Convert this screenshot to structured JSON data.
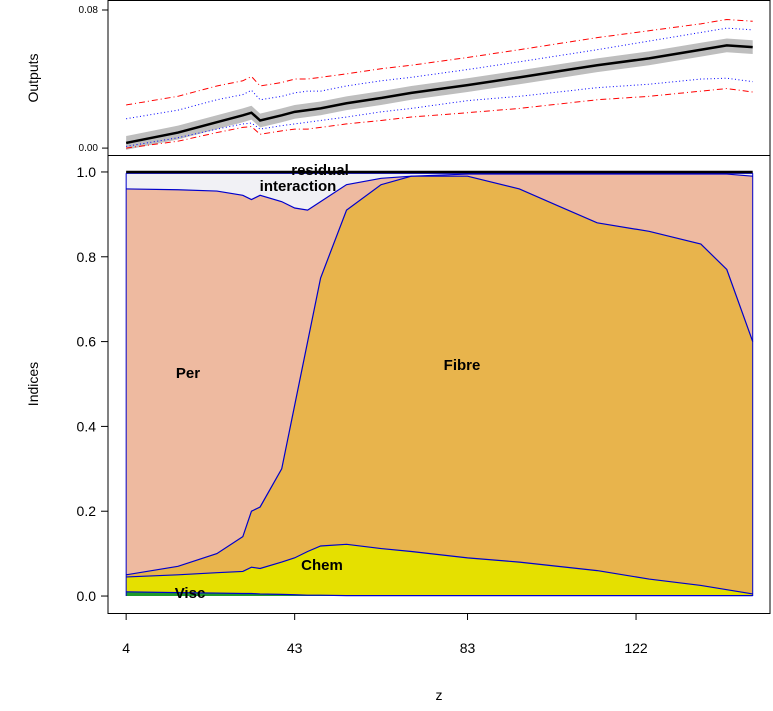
{
  "chart_data": [
    {
      "type": "band-line",
      "y_label": "Outputs",
      "x": [
        4,
        16,
        25,
        31,
        33,
        35,
        40,
        43,
        46,
        49,
        55,
        63,
        70,
        83,
        95,
        104,
        113,
        125,
        137,
        143,
        149
      ],
      "xlim": [
        -0.2,
        153
      ],
      "ylim": [
        -0.004,
        0.0858
      ],
      "yticks": [
        {
          "value": 0,
          "label": "0.00"
        },
        {
          "value": 0.08,
          "label": "0.08"
        }
      ],
      "mean": {
        "color": "#000000",
        "values": [
          0.003,
          0.009,
          0.015,
          0.019,
          0.0205,
          0.016,
          0.019,
          0.021,
          0.022,
          0.023,
          0.026,
          0.029,
          0.032,
          0.0365,
          0.041,
          0.0445,
          0.048,
          0.052,
          0.057,
          0.0595,
          0.0585
        ]
      },
      "bands": [
        {
          "color": "#bebebe",
          "style": "fill",
          "lower": [
            -0.001,
            0.005,
            0.011,
            0.015,
            0.0165,
            0.012,
            0.015,
            0.017,
            0.018,
            0.019,
            0.022,
            0.025,
            0.028,
            0.0325,
            0.037,
            0.0405,
            0.044,
            0.048,
            0.053,
            0.0555,
            0.0545
          ],
          "upper": [
            0.007,
            0.013,
            0.019,
            0.023,
            0.0245,
            0.02,
            0.023,
            0.025,
            0.026,
            0.027,
            0.03,
            0.033,
            0.036,
            0.0405,
            0.045,
            0.0485,
            0.052,
            0.056,
            0.061,
            0.0635,
            0.0625
          ]
        },
        {
          "color": "#0000ff",
          "style": "dotted",
          "lower": [
            0.001,
            0.006,
            0.011,
            0.014,
            0.0145,
            0.011,
            0.013,
            0.014,
            0.015,
            0.016,
            0.018,
            0.021,
            0.023,
            0.0275,
            0.03,
            0.0325,
            0.035,
            0.037,
            0.04,
            0.0405,
            0.0385
          ],
          "upper": [
            0.017,
            0.022,
            0.028,
            0.031,
            0.0335,
            0.028,
            0.03,
            0.032,
            0.033,
            0.033,
            0.036,
            0.039,
            0.041,
            0.0455,
            0.05,
            0.0535,
            0.057,
            0.062,
            0.067,
            0.0695,
            0.0685
          ]
        },
        {
          "color": "#ff0000",
          "style": "dashdot",
          "lower": [
            0.0,
            0.004,
            0.009,
            0.012,
            0.0125,
            0.008,
            0.01,
            0.011,
            0.011,
            0.012,
            0.014,
            0.016,
            0.018,
            0.0205,
            0.023,
            0.0255,
            0.028,
            0.03,
            0.033,
            0.0345,
            0.0325
          ],
          "upper": [
            0.025,
            0.03,
            0.036,
            0.039,
            0.0415,
            0.036,
            0.038,
            0.04,
            0.04,
            0.041,
            0.043,
            0.046,
            0.048,
            0.0525,
            0.057,
            0.0605,
            0.064,
            0.068,
            0.072,
            0.0745,
            0.0735
          ]
        }
      ]
    },
    {
      "type": "stacked-area",
      "x_label": "z",
      "y_label": "Indices",
      "x": [
        4,
        16,
        25,
        31,
        33,
        35,
        40,
        43,
        46,
        49,
        55,
        63,
        70,
        83,
        95,
        104,
        113,
        125,
        137,
        143,
        149
      ],
      "xlim": [
        -0.2,
        153
      ],
      "ylim": [
        -0.04,
        1.04
      ],
      "xticks": [
        4,
        43,
        83,
        122
      ],
      "yticks": [
        {
          "value": 0,
          "label": "0.0"
        },
        {
          "value": 0.2,
          "label": "0.2"
        },
        {
          "value": 0.4,
          "label": "0.4"
        },
        {
          "value": 0.6,
          "label": "0.6"
        },
        {
          "value": 0.8,
          "label": "0.8"
        },
        {
          "value": 1,
          "label": "1.0"
        }
      ],
      "line_color": "#0000cc",
      "top_line_color": "#000000",
      "series": [
        {
          "name": "Visc",
          "color": "#1f9a2a",
          "values": [
            0.01,
            0.008,
            0.007,
            0.006,
            0.006,
            0.005,
            0.004,
            0.003,
            0.002,
            0.002,
            0.001,
            0.001,
            0.001,
            0.001,
            0.001,
            0.001,
            0.001,
            0.001,
            0.001,
            0.001,
            0.001
          ]
        },
        {
          "name": "Chem",
          "color": "#e5e000",
          "values": [
            0.035,
            0.042,
            0.048,
            0.052,
            0.062,
            0.06,
            0.076,
            0.087,
            0.103,
            0.116,
            0.121,
            0.111,
            0.104,
            0.089,
            0.079,
            0.069,
            0.059,
            0.039,
            0.024,
            0.014,
            0.004
          ]
        },
        {
          "name": "Fibre",
          "color": "#e8b44c",
          "values": [
            0.005,
            0.02,
            0.045,
            0.082,
            0.132,
            0.145,
            0.22,
            0.36,
            0.495,
            0.632,
            0.788,
            0.858,
            0.885,
            0.9,
            0.88,
            0.85,
            0.82,
            0.82,
            0.805,
            0.755,
            0.595
          ]
        },
        {
          "name": "Per",
          "color": "#eebaa0",
          "values": [
            0.91,
            0.888,
            0.855,
            0.805,
            0.735,
            0.735,
            0.63,
            0.465,
            0.31,
            0.18,
            0.06,
            0.015,
            0.0,
            0.005,
            0.035,
            0.075,
            0.115,
            0.135,
            0.165,
            0.225,
            0.39
          ]
        },
        {
          "name": "interaction",
          "color": "#f1f1f5",
          "values": [
            0.037,
            0.039,
            0.042,
            0.052,
            0.062,
            0.052,
            0.067,
            0.082,
            0.087,
            0.067,
            0.027,
            0.012,
            0.007,
            0.002,
            0.002,
            0.002,
            0.002,
            0.002,
            0.002,
            0.002,
            0.007
          ]
        },
        {
          "name": "residual",
          "color": "#ffffff",
          "values": [
            0.003,
            0.003,
            0.003,
            0.003,
            0.003,
            0.003,
            0.003,
            0.003,
            0.003,
            0.003,
            0.003,
            0.003,
            0.003,
            0.003,
            0.003,
            0.003,
            0.003,
            0.003,
            0.003,
            0.003,
            0.003
          ]
        }
      ]
    }
  ]
}
